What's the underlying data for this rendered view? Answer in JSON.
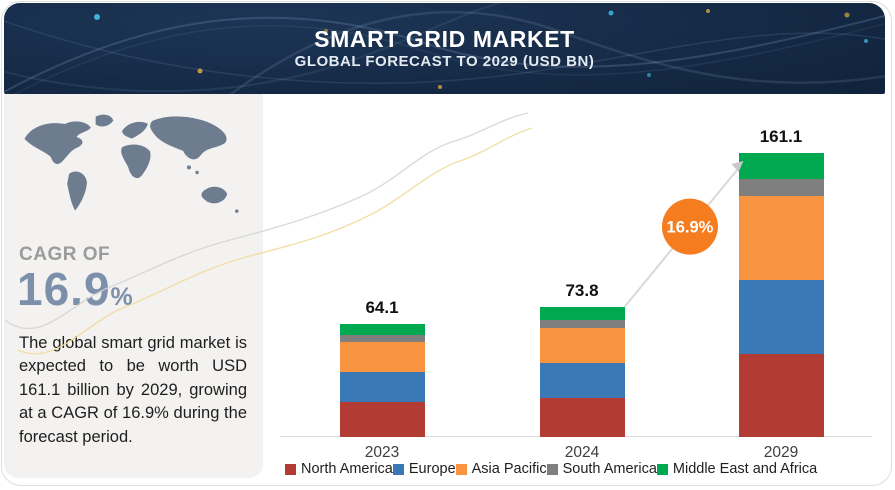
{
  "header": {
    "title": "SMART GRID MARKET",
    "subtitle": "GLOBAL FORECAST TO 2029 (USD BN)"
  },
  "sidebar": {
    "map_icon": "world-map",
    "cagr_label": "CAGR OF",
    "cagr_value": "16.9",
    "cagr_unit": "%",
    "description": "The global smart grid market is expected to be worth USD 161.1 billion by 2029, growing at a CAGR of 16.9% during the forecast period."
  },
  "chart_data": {
    "type": "bar",
    "stacked": true,
    "title": "Smart Grid Market",
    "unit": "USD BN",
    "categories": [
      "2023",
      "2024",
      "2029"
    ],
    "totals": [
      64.1,
      73.8,
      161.1
    ],
    "series": [
      {
        "name": "North America",
        "color": "#b23b33",
        "values": [
          19.9,
          21.9,
          47.0
        ]
      },
      {
        "name": "Europe",
        "color": "#3a79b6",
        "values": [
          16.7,
          20.3,
          42.1
        ]
      },
      {
        "name": "Asia Pacific",
        "color": "#f8943f",
        "values": [
          17.2,
          19.6,
          47.4
        ]
      },
      {
        "name": "South America",
        "color": "#7f7f7f",
        "values": [
          3.9,
          4.5,
          10.0
        ]
      },
      {
        "name": "Middle East and Africa",
        "color": "#00a94f",
        "values": [
          6.4,
          7.5,
          14.6
        ]
      }
    ],
    "annotation": {
      "label": "16.9%",
      "color": "#f57d1f",
      "text_color": "#ffffff",
      "line_color": "#d9d9d9"
    },
    "legend_position": "bottom",
    "grid": false,
    "ylim": [
      0,
      170
    ],
    "colors": {
      "axis_line": "#dcdcdc",
      "total_label": "#111111"
    }
  }
}
